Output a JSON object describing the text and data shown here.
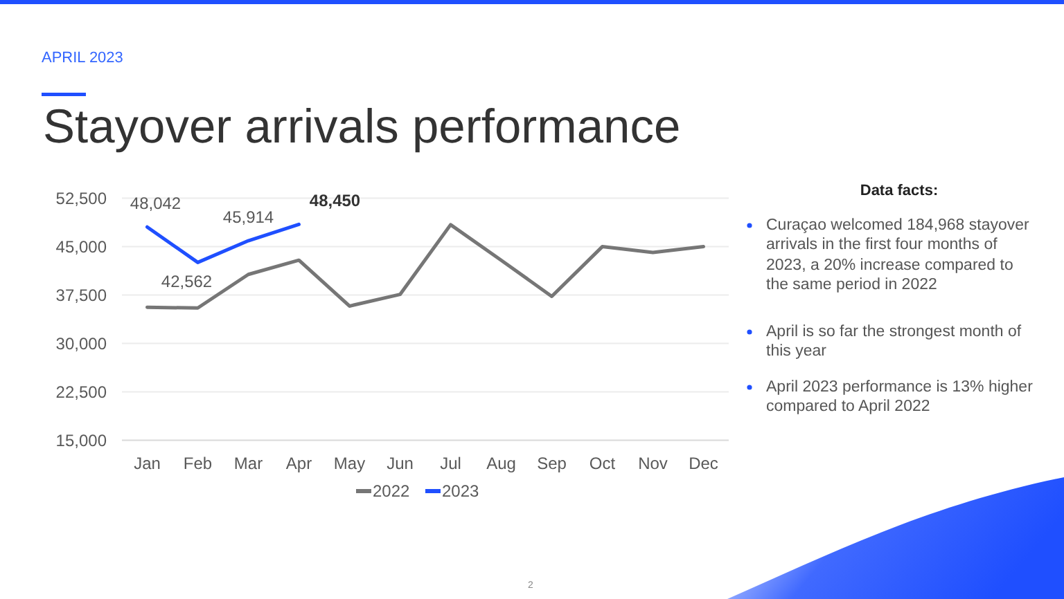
{
  "chart_data": {
    "type": "line",
    "subtitle": "APRIL 2023",
    "title": "Stayover arrivals performance",
    "categories": [
      "Jan",
      "Feb",
      "Mar",
      "Apr",
      "May",
      "Jun",
      "Jul",
      "Aug",
      "Sep",
      "Oct",
      "Nov",
      "Dec"
    ],
    "series": [
      {
        "name": "2022",
        "color": "#767676",
        "values": [
          35600,
          35500,
          40700,
          42900,
          35800,
          37600,
          48400,
          42900,
          37300,
          45000,
          44100,
          45000
        ]
      },
      {
        "name": "2023",
        "color": "#1f4fff",
        "values": [
          48042,
          42562,
          45914,
          48450,
          null,
          null,
          null,
          null,
          null,
          null,
          null,
          null
        ],
        "value_labels": [
          "48,042",
          "42,562",
          "45,914",
          "48,450",
          null,
          null,
          null,
          null,
          null,
          null,
          null,
          null
        ]
      }
    ],
    "ylim": [
      15000,
      52500
    ],
    "yticks": [
      {
        "value": 15000,
        "label": "15,000"
      },
      {
        "value": 22500,
        "label": "22,500"
      },
      {
        "value": 30000,
        "label": "30,000"
      },
      {
        "value": 37500,
        "label": "37,500"
      },
      {
        "value": 45000,
        "label": "45,000"
      },
      {
        "value": 52500,
        "label": "52,500"
      }
    ],
    "grid": "y",
    "legend": "bottom",
    "annotations": [
      "Data facts:",
      "Curaçao welcomed 184,968 stayover arrivals in the first four months of 2023, a 20% increase compared to the same period in 2022",
      "April is so far the strongest month of this year",
      "April 2023 performance is 13% higher compared to April 2022",
      "2"
    ]
  }
}
